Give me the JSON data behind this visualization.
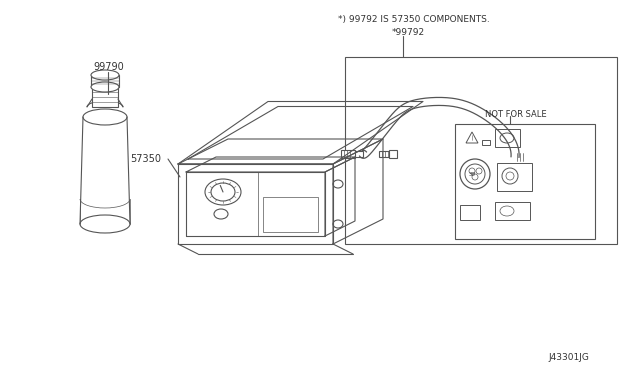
{
  "bg_color": "#ffffff",
  "line_color": "#555555",
  "text_color": "#333333",
  "label_99790": "99790",
  "label_57350": "57350",
  "label_99792": "*99792",
  "note_text": "*) 99792 IS 57350 COMPONENTS.",
  "not_for_sale": "NOT FOR SALE",
  "diagram_id": "J43301JG",
  "figsize": [
    6.4,
    3.72
  ],
  "dpi": 100
}
